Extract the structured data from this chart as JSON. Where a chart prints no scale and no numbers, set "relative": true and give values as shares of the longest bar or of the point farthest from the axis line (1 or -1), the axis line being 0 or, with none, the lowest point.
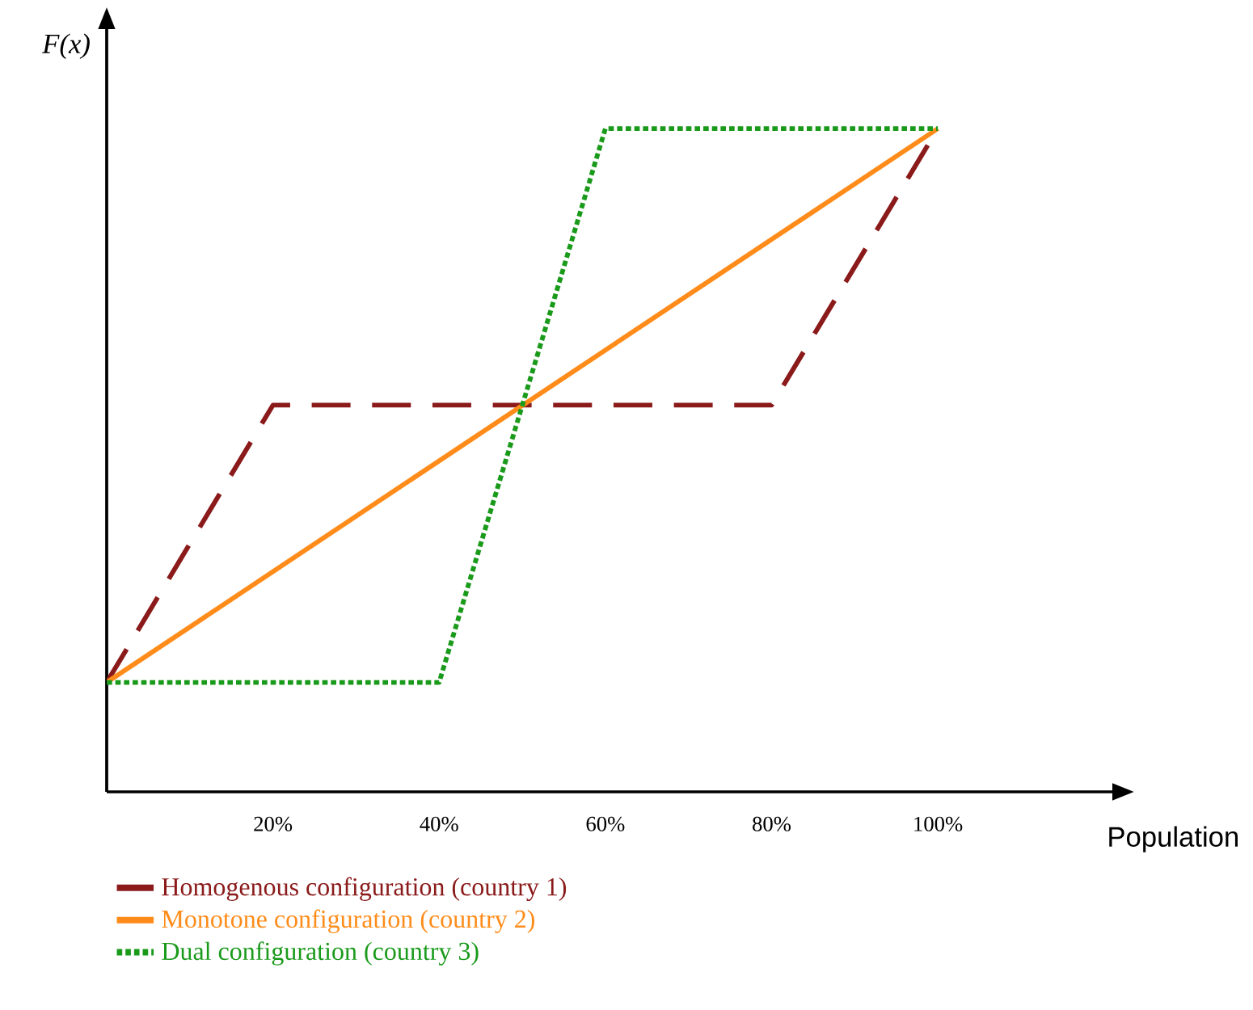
{
  "chart_data": {
    "type": "line",
    "xlabel": "Population",
    "ylabel": "F(x)",
    "relative": true,
    "xlim": [
      0,
      121
    ],
    "xticks": [
      {
        "value": 20,
        "label": "20%"
      },
      {
        "value": 40,
        "label": "40%"
      },
      {
        "value": 60,
        "label": "60%"
      },
      {
        "value": 80,
        "label": "80%"
      },
      {
        "value": 100,
        "label": "100%"
      }
    ],
    "series": [
      {
        "name": "Homogenous configuration (country 1)",
        "color": "#8b1a1a",
        "line_style": "dashed",
        "x": [
          0,
          20,
          80,
          100
        ],
        "values": [
          0.165,
          0.583,
          0.583,
          1
        ]
      },
      {
        "name": "Monotone configuration (country 2)",
        "color": "#ff8c1a",
        "line_style": "solid",
        "x": [
          0,
          100
        ],
        "values": [
          0.165,
          1
        ]
      },
      {
        "name": "Dual configuration (country 3)",
        "color": "#1a9a1a",
        "line_style": "dotted",
        "x": [
          0,
          40,
          60,
          100
        ],
        "values": [
          0.165,
          0.165,
          1,
          1
        ]
      }
    ],
    "legend": "bottom",
    "grid": false,
    "marker": "none"
  }
}
